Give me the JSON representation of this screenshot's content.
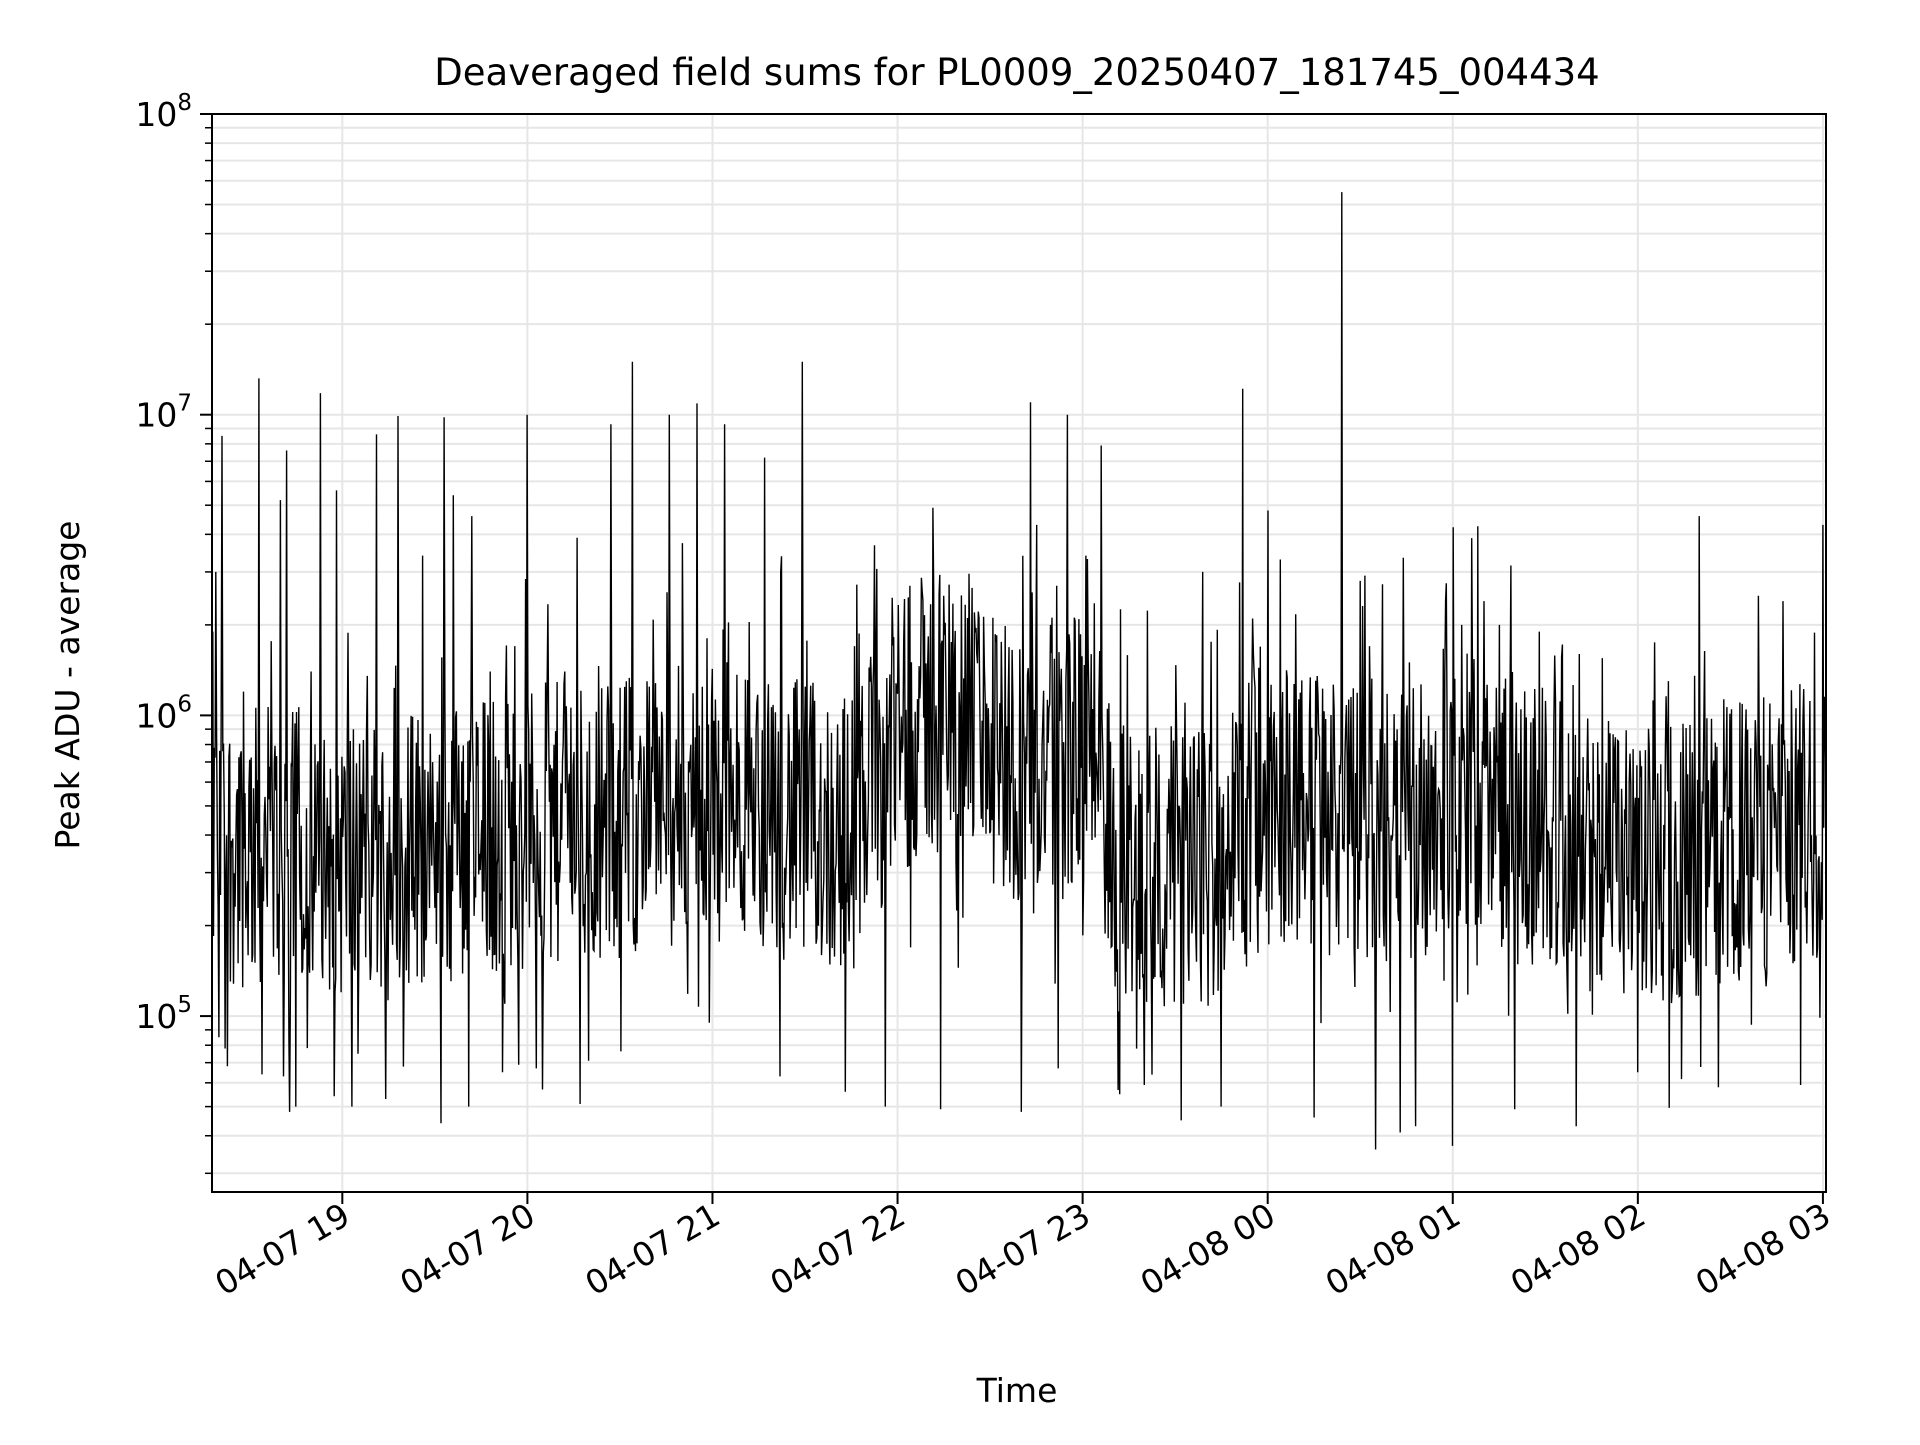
{
  "chart_data": {
    "type": "line",
    "title": "Deaveraged field sums for PL0009_20250407_181745_004434",
    "xlabel": "Time",
    "ylabel": "Peak ADU - average",
    "yscale": "log",
    "ylim": [
      26000,
      100000000
    ],
    "xlim": [
      "2025-04-07 18:17:45",
      "2025-04-08 03:01:00"
    ],
    "x_ticks": [
      {
        "value": "2025-04-07 19:00",
        "label": "04-07 19"
      },
      {
        "value": "2025-04-07 20:00",
        "label": "04-07 20"
      },
      {
        "value": "2025-04-07 21:00",
        "label": "04-07 21"
      },
      {
        "value": "2025-04-07 22:00",
        "label": "04-07 22"
      },
      {
        "value": "2025-04-07 23:00",
        "label": "04-07 23"
      },
      {
        "value": "2025-04-08 00:00",
        "label": "04-08 00"
      },
      {
        "value": "2025-04-08 01:00",
        "label": "04-08 01"
      },
      {
        "value": "2025-04-08 02:00",
        "label": "04-08 02"
      },
      {
        "value": "2025-04-08 03:00",
        "label": "04-08 03"
      }
    ],
    "y_ticks": [
      {
        "value": 100000,
        "base": "10",
        "exp": "5"
      },
      {
        "value": 1000000,
        "base": "10",
        "exp": "6"
      },
      {
        "value": 10000000,
        "base": "10",
        "exp": "7"
      },
      {
        "value": 100000000,
        "base": "10",
        "exp": "8"
      }
    ],
    "grid": true,
    "line_color": "#000000",
    "grid_color": "#e6e6e6",
    "series": [
      {
        "baseline": [
          [
            "2025-04-07 18:17:45",
            380000
          ],
          [
            "2025-04-07 19:00",
            340000
          ],
          [
            "2025-04-07 20:00",
            420000
          ],
          [
            "2025-04-07 21:00",
            520000
          ],
          [
            "2025-04-07 21:45",
            400000
          ],
          [
            "2025-04-07 22:00",
            900000
          ],
          [
            "2025-04-07 22:20",
            1100000
          ],
          [
            "2025-04-07 22:40",
            650000
          ],
          [
            "2025-04-07 23:05",
            800000
          ],
          [
            "2025-04-07 23:10",
            330000
          ],
          [
            "2025-04-07 23:40",
            310000
          ],
          [
            "2025-04-08 00:00",
            520000
          ],
          [
            "2025-04-08 00:45",
            420000
          ],
          [
            "2025-04-08 01:00",
            600000
          ],
          [
            "2025-04-08 02:00",
            300000
          ],
          [
            "2025-04-08 03:01",
            460000
          ]
        ],
        "spikes": [
          [
            "2025-04-07 18:18",
            1900000
          ],
          [
            "2025-04-07 18:19",
            3000000
          ],
          [
            "2025-04-07 18:21",
            8500000
          ],
          [
            "2025-04-07 18:28",
            1200000
          ],
          [
            "2025-04-07 18:33",
            13200000
          ],
          [
            "2025-04-07 18:40",
            5200000
          ],
          [
            "2025-04-07 18:42",
            7600000
          ],
          [
            "2025-04-07 18:50",
            1400000
          ],
          [
            "2025-04-07 18:53",
            11800000
          ],
          [
            "2025-04-07 18:58",
            5600000
          ],
          [
            "2025-04-07 19:11",
            8600000
          ],
          [
            "2025-04-07 19:18",
            9900000
          ],
          [
            "2025-04-07 19:26",
            3400000
          ],
          [
            "2025-04-07 19:33",
            9800000
          ],
          [
            "2025-04-07 19:36",
            5400000
          ],
          [
            "2025-04-07 19:42",
            4600000
          ],
          [
            "2025-04-07 19:48",
            1400000
          ],
          [
            "2025-04-07 19:56",
            1700000
          ],
          [
            "2025-04-07 20:00",
            10000000
          ],
          [
            "2025-04-07 20:12",
            1400000
          ],
          [
            "2025-04-07 20:27",
            9300000
          ],
          [
            "2025-04-07 20:34",
            15000000
          ],
          [
            "2025-04-07 20:46",
            10000000
          ],
          [
            "2025-04-07 20:55",
            10900000
          ],
          [
            "2025-04-07 21:04",
            9300000
          ],
          [
            "2025-04-07 21:17",
            7200000
          ],
          [
            "2025-04-07 21:29",
            15000000
          ],
          [
            "2025-04-07 21:46",
            1700000
          ],
          [
            "2025-04-07 22:04",
            2700000
          ],
          [
            "2025-04-07 22:15",
            2500000
          ],
          [
            "2025-04-07 22:25",
            2200000
          ],
          [
            "2025-04-07 22:43",
            11000000
          ],
          [
            "2025-04-07 22:45",
            4300000
          ],
          [
            "2025-04-07 22:55",
            10000000
          ],
          [
            "2025-04-07 23:01",
            3400000
          ],
          [
            "2025-04-07 23:06",
            7900000
          ],
          [
            "2025-04-07 23:39",
            3000000
          ],
          [
            "2025-04-07 23:52",
            12200000
          ],
          [
            "2025-04-07 23:55",
            2100000
          ],
          [
            "2025-04-08 00:00",
            4800000
          ],
          [
            "2025-04-08 00:04",
            3300000
          ],
          [
            "2025-04-08 00:24",
            55000000
          ],
          [
            "2025-04-08 00:33",
            1700000
          ],
          [
            "2025-04-08 00:46",
            1500000
          ],
          [
            "2025-04-08 01:03",
            2000000
          ],
          [
            "2025-04-08 01:10",
            2400000
          ],
          [
            "2025-04-08 01:15",
            2000000
          ],
          [
            "2025-04-08 01:28",
            1900000
          ],
          [
            "2025-04-08 01:41",
            1600000
          ],
          [
            "2025-04-08 02:10",
            1300000
          ],
          [
            "2025-04-08 02:20",
            4600000
          ],
          [
            "2025-04-08 02:39",
            2500000
          ],
          [
            "2025-04-08 02:47",
            2400000
          ],
          [
            "2025-04-08 03:00",
            4300000
          ]
        ],
        "dips": [
          [
            "2025-04-07 18:20",
            85000
          ],
          [
            "2025-04-07 18:22",
            78000
          ],
          [
            "2025-04-07 18:34",
            64000
          ],
          [
            "2025-04-07 18:41",
            63000
          ],
          [
            "2025-04-07 18:43",
            48000
          ],
          [
            "2025-04-07 18:45",
            50000
          ],
          [
            "2025-04-07 19:03",
            50000
          ],
          [
            "2025-04-07 19:05",
            75000
          ],
          [
            "2025-04-07 19:14",
            53000
          ],
          [
            "2025-04-07 19:32",
            44000
          ],
          [
            "2025-04-07 19:41",
            50000
          ],
          [
            "2025-04-07 19:52",
            65000
          ],
          [
            "2025-04-07 20:03",
            67000
          ],
          [
            "2025-04-07 20:05",
            57000
          ],
          [
            "2025-04-07 20:17",
            51000
          ],
          [
            "2025-04-07 20:59",
            95000
          ],
          [
            "2025-04-07 21:22",
            63000
          ],
          [
            "2025-04-07 21:43",
            56000
          ],
          [
            "2025-04-07 21:56",
            50000
          ],
          [
            "2025-04-07 22:14",
            49000
          ],
          [
            "2025-04-07 22:40",
            48000
          ],
          [
            "2025-04-07 22:52",
            67000
          ],
          [
            "2025-04-07 23:12",
            55000
          ],
          [
            "2025-04-07 23:20",
            59000
          ],
          [
            "2025-04-07 23:32",
            45000
          ],
          [
            "2025-04-07 23:45",
            50000
          ],
          [
            "2025-04-08 00:15",
            46000
          ],
          [
            "2025-04-08 00:35",
            36000
          ],
          [
            "2025-04-08 00:43",
            41000
          ],
          [
            "2025-04-08 00:48",
            43000
          ],
          [
            "2025-04-08 01:00",
            37000
          ],
          [
            "2025-04-08 01:20",
            49000
          ],
          [
            "2025-04-08 01:40",
            43000
          ],
          [
            "2025-04-08 02:00",
            65000
          ],
          [
            "2025-04-08 02:26",
            58000
          ]
        ]
      }
    ]
  }
}
